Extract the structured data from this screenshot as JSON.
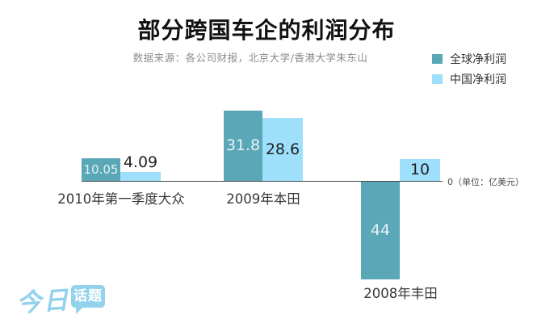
{
  "header": {
    "title": "部分跨国车企的利润分布",
    "subtitle": "数据来源：各公司财报，北京大学/香港大学朱东山"
  },
  "logo": {
    "script_text": "今日",
    "bubble_text": "话题"
  },
  "chart_data": {
    "type": "bar",
    "categories": [
      "2010年第一季度大众",
      "2009年本田",
      "2008年丰田"
    ],
    "series": [
      {
        "name": "全球净利润",
        "color": "#5aa7b8",
        "values": [
          10.05,
          31.8,
          -44
        ]
      },
      {
        "name": "中国净利润",
        "color": "#9ee0fb",
        "values": [
          4.09,
          28.6,
          10
        ]
      }
    ],
    "zero_label": "0（单位：亿美元）",
    "unit": "亿美元",
    "ylim": [
      -50,
      35
    ],
    "grid": "off",
    "legend_position": "top-right"
  },
  "colors": {
    "dark_bar_label": "rgba(255,255,255,0.85)",
    "light_bar_label": "#222222",
    "axis": "#4a4a4a",
    "logo_blue": "#92d2ec"
  }
}
